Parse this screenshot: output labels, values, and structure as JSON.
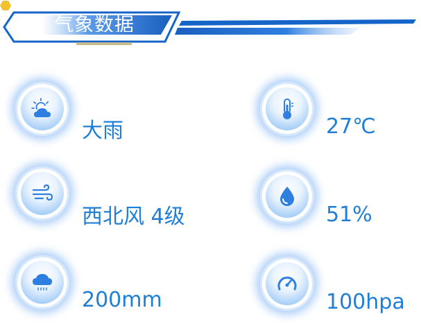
{
  "header": {
    "title": "气象数据"
  },
  "weather": {
    "condition": "大雨",
    "temperature": "27℃",
    "wind": "西北风 4级",
    "humidity": "51%",
    "rainfall": "200mm",
    "pressure": "100hpa"
  },
  "icons": {
    "condition": "sun-cloud-icon",
    "temperature": "thermometer-icon",
    "wind": "wind-icon",
    "humidity": "water-drop-icon",
    "rainfall": "rain-cloud-icon",
    "pressure": "gauge-icon"
  },
  "colors": {
    "accent": "#1f7fd6",
    "header_blue": "#1565c8",
    "hex_yellow": "#f2c12e"
  }
}
